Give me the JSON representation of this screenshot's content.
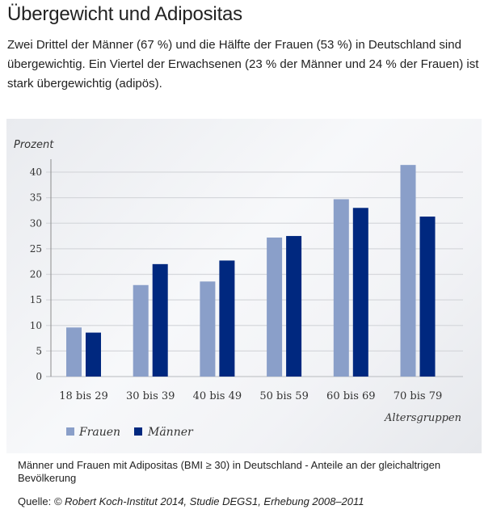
{
  "header": {
    "title": "Übergewicht und Adipositas",
    "intro": "Zwei Drittel der Männer (67 %) und die Hälfte der Frauen (53 %) in Deutschland sind übergewichtig. Ein Viertel der Erwachsenen (23 % der Männer und 24 % der Frauen) ist stark übergewichtig (adipös)."
  },
  "figure": {
    "caption": "Männer und Frauen mit Adipositas (BMI ≥ 30) in Deutschland - Anteile an der gleichaltrigen Bevölkerung",
    "source_label": "Quelle: ",
    "source_text": "© Robert Koch-Institut 2014, Studie DEGS1, Erhebung 2008–2011"
  },
  "chart_data": {
    "type": "bar",
    "title": "",
    "ylabel": "Prozent",
    "xlabel": "Altersgruppen",
    "ylim": [
      0,
      40
    ],
    "yticks": [
      0,
      5,
      10,
      15,
      20,
      25,
      30,
      35,
      40
    ],
    "grid": true,
    "legend_position": "bottom-left",
    "categories": [
      "18 bis 29",
      "30 bis 39",
      "40 bis 49",
      "50 bis 59",
      "60 bis 69",
      "70 bis 79"
    ],
    "series": [
      {
        "name": "Frauen",
        "color": "#8a9fc9",
        "values": [
          9.6,
          17.9,
          18.6,
          27.2,
          34.7,
          41.4
        ]
      },
      {
        "name": "Männer",
        "color": "#00287f",
        "values": [
          8.6,
          22.0,
          22.7,
          27.5,
          33.0,
          31.3
        ]
      }
    ]
  }
}
